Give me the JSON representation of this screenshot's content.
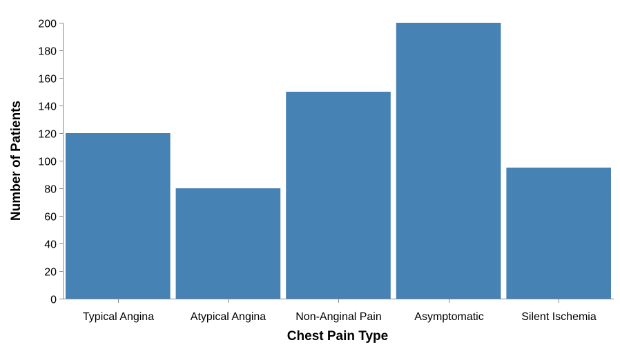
{
  "chart_data": {
    "type": "bar",
    "categories": [
      "Typical Angina",
      "Atypical Angina",
      "Non-Anginal Pain",
      "Asymptomatic",
      "Silent Ischemia"
    ],
    "values": [
      120,
      80,
      150,
      200,
      95
    ],
    "xlabel": "Chest Pain Type",
    "ylabel": "Number of Patients",
    "ylim": [
      0,
      200
    ],
    "yticks": [
      0,
      20,
      40,
      60,
      80,
      100,
      120,
      140,
      160,
      180,
      200
    ],
    "grid": false,
    "bar_color": "#4682b4"
  }
}
